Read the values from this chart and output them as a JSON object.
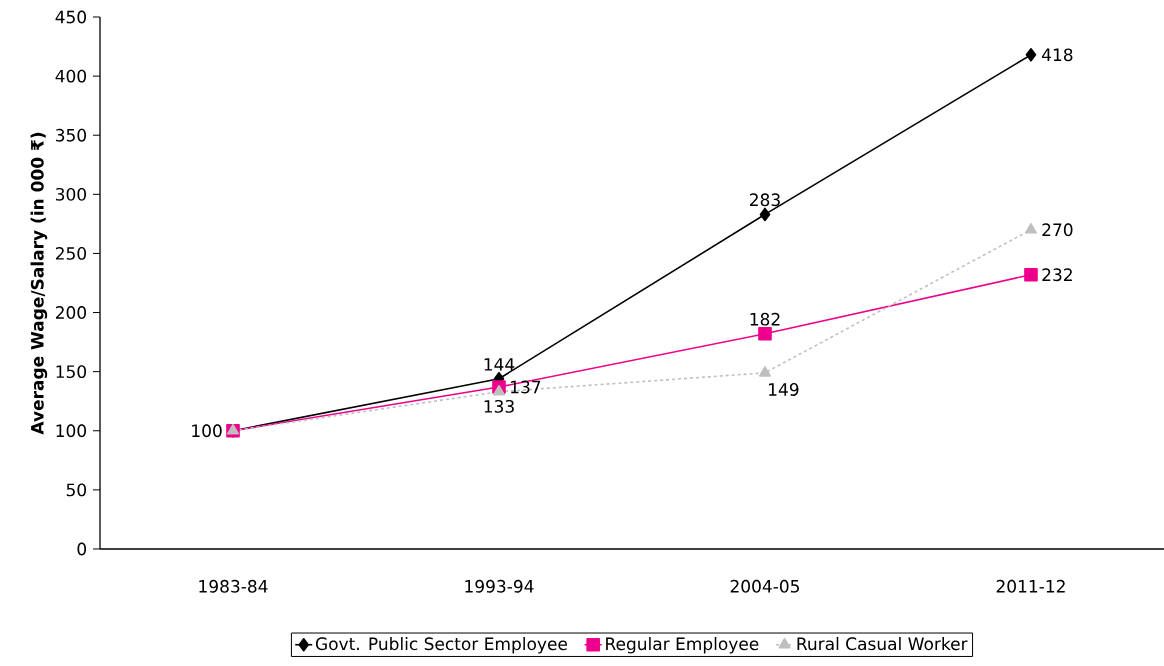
{
  "chart_data": {
    "type": "line",
    "ylabel": "Average Wage/Salary (in 000 ₹)",
    "categories": [
      "1983-84",
      "1993-94",
      "2004-05",
      "2011-12"
    ],
    "ylim": [
      0,
      450
    ],
    "yticks": [
      0,
      50,
      100,
      150,
      200,
      250,
      300,
      350,
      400,
      450
    ],
    "legend": "bottom",
    "grid": false,
    "series": [
      {
        "name": "Govt. Public Sector Employee",
        "color": "#000000",
        "marker": "diamond",
        "line_style": "solid",
        "values": [
          100,
          144,
          283,
          418
        ],
        "value_labels": [
          "100",
          "144",
          "283",
          "418"
        ]
      },
      {
        "name": "Regular Employee",
        "color": "#ec008c",
        "marker": "square",
        "line_style": "solid",
        "values": [
          100,
          137,
          182,
          232
        ],
        "value_labels": [
          null,
          "137",
          "182",
          "232"
        ]
      },
      {
        "name": "Rural Casual Worker",
        "color": "#bfbfbf",
        "marker": "triangle",
        "line_style": "dashed",
        "values": [
          100,
          133,
          149,
          270
        ],
        "value_labels": [
          null,
          "133",
          "149",
          "270"
        ]
      }
    ]
  }
}
